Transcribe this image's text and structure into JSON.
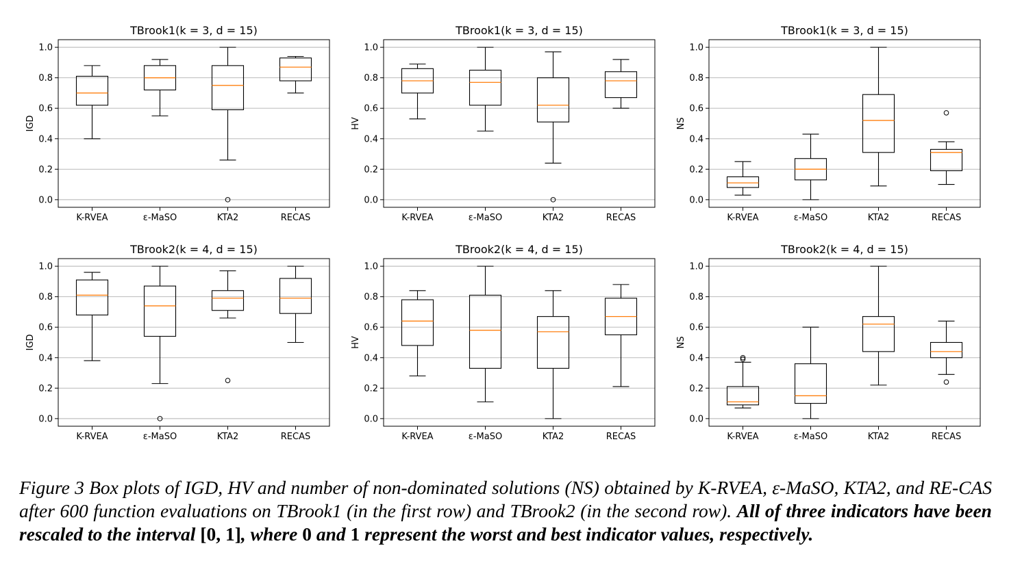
{
  "chart_data": [
    {
      "type": "box",
      "title": "TBrook1(k = 3, d = 15)",
      "ylabel": "IGD",
      "categories": [
        "K-RVEA",
        "ε-MaSO",
        "KTA2",
        "RECAS"
      ],
      "ylim": [
        -0.05,
        1.05
      ],
      "yticks": [
        "0.0",
        "0.2",
        "0.4",
        "0.6",
        "0.8",
        "1.0"
      ],
      "grid": "y",
      "boxes": [
        {
          "whislo": 0.4,
          "q1": 0.62,
          "med": 0.7,
          "q3": 0.81,
          "whishi": 0.88,
          "fliers": []
        },
        {
          "whislo": 0.55,
          "q1": 0.72,
          "med": 0.8,
          "q3": 0.88,
          "whishi": 0.92,
          "fliers": []
        },
        {
          "whislo": 0.26,
          "q1": 0.59,
          "med": 0.75,
          "q3": 0.88,
          "whishi": 1.0,
          "fliers": [
            0.0
          ]
        },
        {
          "whislo": 0.7,
          "q1": 0.78,
          "med": 0.87,
          "q3": 0.93,
          "whishi": 0.94,
          "fliers": []
        }
      ]
    },
    {
      "type": "box",
      "title": "TBrook1(k = 3, d = 15)",
      "ylabel": "HV",
      "categories": [
        "K-RVEA",
        "ε-MaSO",
        "KTA2",
        "RECAS"
      ],
      "ylim": [
        -0.05,
        1.05
      ],
      "yticks": [
        "0.0",
        "0.2",
        "0.4",
        "0.6",
        "0.8",
        "1.0"
      ],
      "grid": "y",
      "boxes": [
        {
          "whislo": 0.53,
          "q1": 0.7,
          "med": 0.78,
          "q3": 0.86,
          "whishi": 0.89,
          "fliers": []
        },
        {
          "whislo": 0.45,
          "q1": 0.62,
          "med": 0.77,
          "q3": 0.85,
          "whishi": 1.0,
          "fliers": []
        },
        {
          "whislo": 0.24,
          "q1": 0.51,
          "med": 0.62,
          "q3": 0.8,
          "whishi": 0.97,
          "fliers": [
            0.0
          ]
        },
        {
          "whislo": 0.6,
          "q1": 0.67,
          "med": 0.78,
          "q3": 0.84,
          "whishi": 0.92,
          "fliers": []
        }
      ]
    },
    {
      "type": "box",
      "title": "TBrook1(k = 3, d = 15)",
      "ylabel": "NS",
      "categories": [
        "K-RVEA",
        "ε-MaSO",
        "KTA2",
        "RECAS"
      ],
      "ylim": [
        -0.05,
        1.05
      ],
      "yticks": [
        "0.0",
        "0.2",
        "0.4",
        "0.6",
        "0.8",
        "1.0"
      ],
      "grid": "y",
      "boxes": [
        {
          "whislo": 0.03,
          "q1": 0.08,
          "med": 0.11,
          "q3": 0.15,
          "whishi": 0.25,
          "fliers": []
        },
        {
          "whislo": 0.0,
          "q1": 0.13,
          "med": 0.2,
          "q3": 0.27,
          "whishi": 0.43,
          "fliers": []
        },
        {
          "whislo": 0.09,
          "q1": 0.31,
          "med": 0.52,
          "q3": 0.69,
          "whishi": 1.0,
          "fliers": []
        },
        {
          "whislo": 0.1,
          "q1": 0.19,
          "med": 0.31,
          "q3": 0.33,
          "whishi": 0.38,
          "fliers": [
            0.57
          ]
        }
      ]
    },
    {
      "type": "box",
      "title": "TBrook2(k = 4, d = 15)",
      "ylabel": "IGD",
      "categories": [
        "K-RVEA",
        "ε-MaSO",
        "KTA2",
        "RECAS"
      ],
      "ylim": [
        -0.05,
        1.05
      ],
      "yticks": [
        "0.0",
        "0.2",
        "0.4",
        "0.6",
        "0.8",
        "1.0"
      ],
      "grid": "y",
      "boxes": [
        {
          "whislo": 0.38,
          "q1": 0.68,
          "med": 0.81,
          "q3": 0.91,
          "whishi": 0.96,
          "fliers": []
        },
        {
          "whislo": 0.23,
          "q1": 0.54,
          "med": 0.74,
          "q3": 0.87,
          "whishi": 1.0,
          "fliers": [
            0.0
          ]
        },
        {
          "whislo": 0.66,
          "q1": 0.71,
          "med": 0.79,
          "q3": 0.84,
          "whishi": 0.97,
          "fliers": [
            0.25
          ]
        },
        {
          "whislo": 0.5,
          "q1": 0.69,
          "med": 0.79,
          "q3": 0.92,
          "whishi": 1.0,
          "fliers": []
        }
      ]
    },
    {
      "type": "box",
      "title": "TBrook2(k = 4, d = 15)",
      "ylabel": "HV",
      "categories": [
        "K-RVEA",
        "ε-MaSO",
        "KTA2",
        "RECAS"
      ],
      "ylim": [
        -0.05,
        1.05
      ],
      "yticks": [
        "0.0",
        "0.2",
        "0.4",
        "0.6",
        "0.8",
        "1.0"
      ],
      "grid": "y",
      "boxes": [
        {
          "whislo": 0.28,
          "q1": 0.48,
          "med": 0.64,
          "q3": 0.78,
          "whishi": 0.84,
          "fliers": []
        },
        {
          "whislo": 0.11,
          "q1": 0.33,
          "med": 0.58,
          "q3": 0.81,
          "whishi": 1.0,
          "fliers": []
        },
        {
          "whislo": 0.0,
          "q1": 0.33,
          "med": 0.57,
          "q3": 0.67,
          "whishi": 0.84,
          "fliers": []
        },
        {
          "whislo": 0.21,
          "q1": 0.55,
          "med": 0.67,
          "q3": 0.79,
          "whishi": 0.88,
          "fliers": []
        }
      ]
    },
    {
      "type": "box",
      "title": "TBrook2(k = 4, d = 15)",
      "ylabel": "NS",
      "categories": [
        "K-RVEA",
        "ε-MaSO",
        "KTA2",
        "RECAS"
      ],
      "ylim": [
        -0.05,
        1.05
      ],
      "yticks": [
        "0.0",
        "0.2",
        "0.4",
        "0.6",
        "0.8",
        "1.0"
      ],
      "grid": "y",
      "boxes": [
        {
          "whislo": 0.07,
          "q1": 0.09,
          "med": 0.11,
          "q3": 0.21,
          "whishi": 0.37,
          "fliers": [
            0.39,
            0.4
          ]
        },
        {
          "whislo": 0.0,
          "q1": 0.1,
          "med": 0.15,
          "q3": 0.36,
          "whishi": 0.6,
          "fliers": []
        },
        {
          "whislo": 0.22,
          "q1": 0.44,
          "med": 0.62,
          "q3": 0.67,
          "whishi": 1.0,
          "fliers": []
        },
        {
          "whislo": 0.29,
          "q1": 0.4,
          "med": 0.44,
          "q3": 0.5,
          "whishi": 0.64,
          "fliers": [
            0.24
          ]
        }
      ]
    }
  ],
  "colors": {
    "box": "#000000",
    "median": "#ff7f0e",
    "grid": "#b0b0b0"
  },
  "caption": {
    "part1": "Figure 3 Box plots of IGD, HV and number of non-dominated solutions (NS) obtained by K-RVEA, ε-MaSO, KTA2, and RE-CAS after 600 function evaluations on TBrook1 (in the first row) and TBrook2 (in the second row). ",
    "bold1": "All of three indicators have been rescaled to the interval ",
    "interval": "[0, 1]",
    "bold2": ", where ",
    "zero": "0",
    "bold3": " and ",
    "one": "1",
    "bold4": " represent the worst and best indicator values, respectively."
  }
}
